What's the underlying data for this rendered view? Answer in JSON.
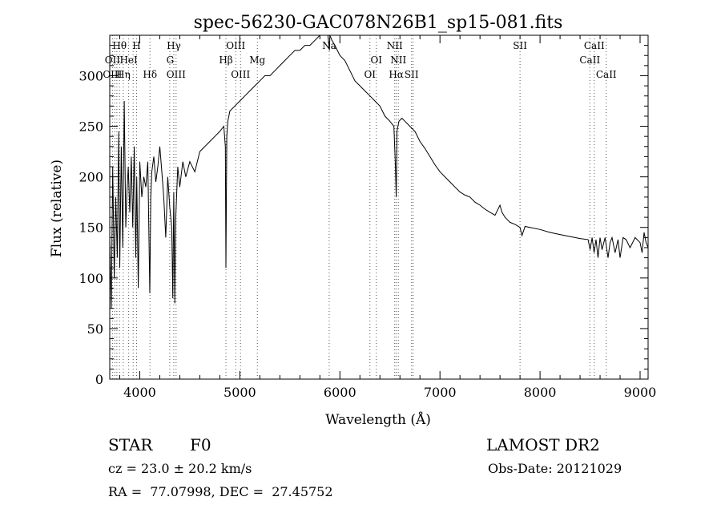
{
  "chart_data": {
    "type": "line",
    "title": "spec-56230-GAC078N26B1_sp15-081.fits",
    "xlabel": "Wavelength (Å)",
    "ylabel": "Flux (relative)",
    "xlim": [
      3700,
      9080
    ],
    "ylim": [
      0,
      340
    ],
    "xticks": [
      4000,
      5000,
      6000,
      7000,
      8000,
      9000
    ],
    "yticks": [
      0,
      50,
      100,
      150,
      200,
      250,
      300
    ],
    "grid": false,
    "line_color": "#000000",
    "series": [
      {
        "x": [
          3700,
          3715,
          3730,
          3745,
          3760,
          3775,
          3790,
          3800,
          3815,
          3830,
          3845,
          3860,
          3870,
          3885,
          3900,
          3915,
          3930,
          3945,
          3960,
          3970,
          3985,
          4000,
          4020,
          4040,
          4060,
          4080,
          4100,
          4110,
          4120,
          4140,
          4160,
          4180,
          4200,
          4220,
          4240,
          4260,
          4280,
          4300,
          4320,
          4330,
          4340,
          4350,
          4360,
          4380,
          4400,
          4430,
          4460,
          4500,
          4550,
          4600,
          4650,
          4700,
          4750,
          4800,
          4840,
          4855,
          4861,
          4870,
          4880,
          4900,
          4950,
          5000,
          5050,
          5100,
          5150,
          5200,
          5250,
          5300,
          5350,
          5400,
          5450,
          5500,
          5550,
          5600,
          5650,
          5700,
          5750,
          5800,
          5850,
          5880,
          5895,
          5900,
          5920,
          5950,
          6000,
          6050,
          6100,
          6150,
          6200,
          6250,
          6300,
          6350,
          6400,
          6450,
          6500,
          6540,
          6555,
          6563,
          6570,
          6590,
          6620,
          6650,
          6700,
          6750,
          6800,
          6850,
          6900,
          6950,
          7000,
          7050,
          7100,
          7150,
          7200,
          7250,
          7300,
          7350,
          7400,
          7450,
          7500,
          7550,
          7600,
          7620,
          7650,
          7700,
          7750,
          7800,
          7820,
          7850,
          7900,
          8000,
          8100,
          8200,
          8300,
          8400,
          8480,
          8500,
          8520,
          8540,
          8560,
          8580,
          8600,
          8620,
          8650,
          8680,
          8700,
          8720,
          8750,
          8780,
          8800,
          8830,
          8860,
          8900,
          8950,
          9000,
          9020,
          9040,
          9060,
          9080
        ],
        "y": [
          140,
          70,
          210,
          100,
          180,
          120,
          245,
          110,
          230,
          130,
          275,
          150,
          180,
          210,
          165,
          220,
          150,
          230,
          120,
          200,
          90,
          215,
          180,
          200,
          190,
          215,
          85,
          180,
          205,
          220,
          195,
          210,
          230,
          205,
          180,
          140,
          200,
          170,
          150,
          80,
          185,
          75,
          160,
          210,
          190,
          215,
          200,
          215,
          205,
          225,
          230,
          235,
          240,
          245,
          250,
          230,
          110,
          240,
          255,
          265,
          270,
          275,
          280,
          285,
          290,
          295,
          300,
          300,
          305,
          310,
          315,
          320,
          325,
          325,
          330,
          330,
          335,
          340,
          345,
          340,
          325,
          345,
          335,
          330,
          320,
          315,
          305,
          295,
          290,
          285,
          280,
          275,
          270,
          260,
          255,
          250,
          210,
          180,
          245,
          255,
          258,
          255,
          250,
          245,
          235,
          228,
          220,
          212,
          205,
          200,
          195,
          190,
          185,
          182,
          180,
          175,
          172,
          168,
          165,
          162,
          172,
          165,
          160,
          155,
          153,
          150,
          142,
          151,
          150,
          148,
          145,
          143,
          141,
          139,
          138,
          128,
          140,
          125,
          138,
          120,
          140,
          128,
          140,
          120,
          135,
          140,
          125,
          138,
          120,
          140,
          138,
          130,
          140,
          135,
          125,
          145,
          135,
          130
        ]
      }
    ],
    "line_labels": [
      {
        "label": "Hθ",
        "x": 3798,
        "row": 1
      },
      {
        "label": "H",
        "x": 3968,
        "row": 1
      },
      {
        "label": "Hγ",
        "x": 4340,
        "row": 1
      },
      {
        "label": "OIII",
        "x": 4959,
        "row": 1
      },
      {
        "label": "Na",
        "x": 5893,
        "row": 1
      },
      {
        "label": "NII",
        "x": 6548,
        "row": 1
      },
      {
        "label": "SII",
        "x": 7800,
        "row": 1
      },
      {
        "label": "CaII",
        "x": 8542,
        "row": 1
      },
      {
        "label": "OII",
        "x": 3727,
        "row": 2
      },
      {
        "label": "HeI",
        "x": 3889,
        "row": 2
      },
      {
        "label": "G",
        "x": 4304,
        "row": 2
      },
      {
        "label": "Hβ",
        "x": 4861,
        "row": 2
      },
      {
        "label": "Mg",
        "x": 5175,
        "row": 2
      },
      {
        "label": "OI",
        "x": 6364,
        "row": 2
      },
      {
        "label": "NII",
        "x": 6584,
        "row": 2
      },
      {
        "label": "CaII",
        "x": 8498,
        "row": 2
      },
      {
        "label": "OIII",
        "x": 3727,
        "row": 3
      },
      {
        "label": "Hη",
        "x": 3835,
        "row": 3
      },
      {
        "label": "Hδ",
        "x": 4102,
        "row": 3
      },
      {
        "label": "OIII",
        "x": 4363,
        "row": 3
      },
      {
        "label": "OIII",
        "x": 5007,
        "row": 3
      },
      {
        "label": "OI",
        "x": 6300,
        "row": 3
      },
      {
        "label": "Hα",
        "x": 6563,
        "row": 3
      },
      {
        "label": "SII",
        "x": 6716,
        "row": 3
      },
      {
        "label": "CaII",
        "x": 8662,
        "row": 3
      }
    ],
    "marker_lines_x": [
      3727,
      3750,
      3771,
      3798,
      3835,
      3889,
      3934,
      3968,
      4102,
      4300,
      4340,
      4363,
      4861,
      4959,
      5007,
      5175,
      5893,
      6300,
      6364,
      6548,
      6563,
      6584,
      6716,
      6731,
      7800,
      8498,
      8542,
      8662
    ]
  },
  "info": {
    "object_class": "STAR",
    "subclass": "F0",
    "survey": "LAMOST DR2",
    "redshift": "cz = 23.0 ± 20.2 km/s",
    "obs_date": "Obs-Date: 20121029",
    "coords": "RA =  77.07998, DEC =  27.45752"
  }
}
